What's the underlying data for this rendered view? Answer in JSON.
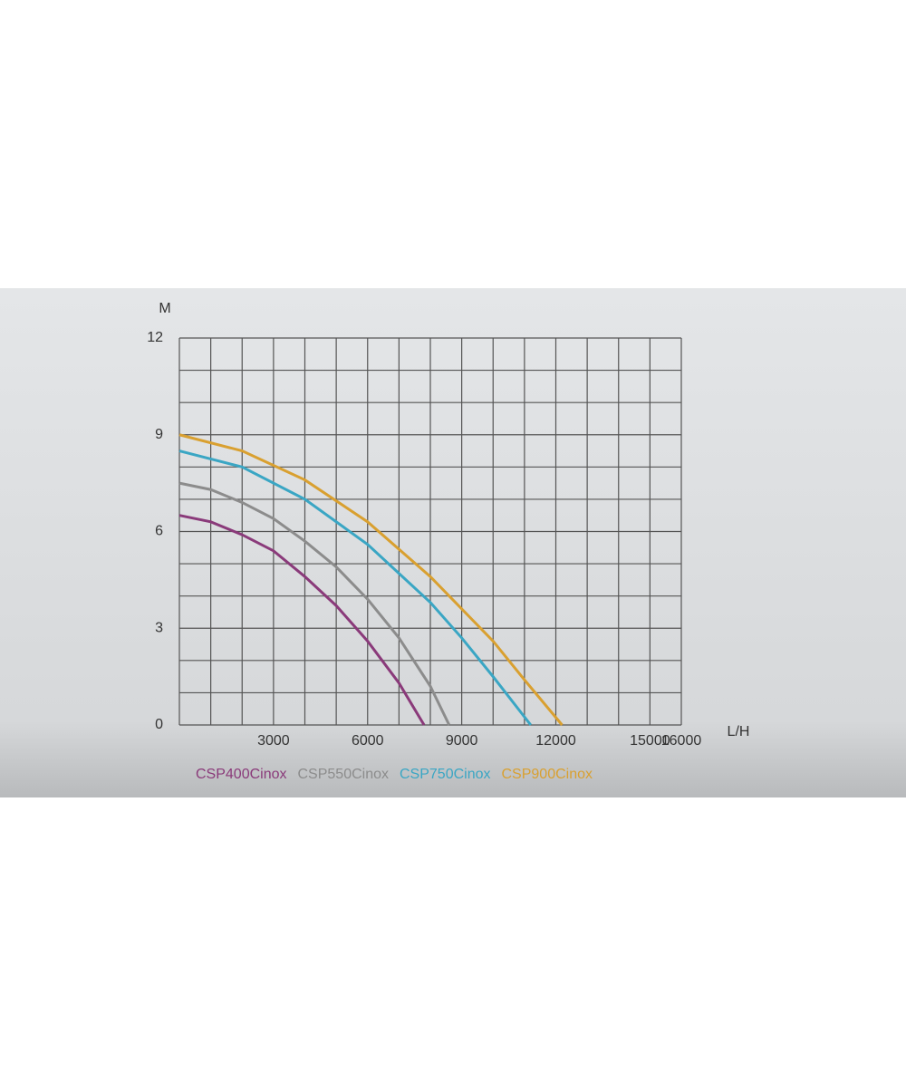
{
  "chart_data": {
    "type": "line",
    "y_label": "M",
    "x_label": "L/H",
    "xlim": [
      0,
      16000
    ],
    "ylim": [
      0,
      12
    ],
    "xticks": [
      3000,
      6000,
      9000,
      12000,
      15000,
      16000
    ],
    "yticks": [
      0,
      3,
      6,
      9,
      12
    ],
    "xgrid": [
      1000,
      2000,
      3000,
      4000,
      5000,
      6000,
      7000,
      8000,
      9000,
      10000,
      11000,
      12000,
      13000,
      14000,
      15000,
      16000
    ],
    "ygrid": [
      1,
      2,
      3,
      4,
      5,
      6,
      7,
      8,
      9,
      10,
      11,
      12
    ],
    "grid": true,
    "series": [
      {
        "name": "CSP400Cinox",
        "color": "#8a3a7a",
        "x": [
          0,
          1000,
          2000,
          3000,
          4000,
          5000,
          6000,
          7000,
          7800
        ],
        "values": [
          6.5,
          6.3,
          5.9,
          5.4,
          4.6,
          3.7,
          2.6,
          1.3,
          0
        ]
      },
      {
        "name": "CSP550Cinox",
        "color": "#8c8c8c",
        "x": [
          0,
          1000,
          2000,
          3000,
          4000,
          5000,
          6000,
          7000,
          8000,
          8600
        ],
        "values": [
          7.5,
          7.3,
          6.9,
          6.4,
          5.7,
          4.9,
          3.9,
          2.7,
          1.2,
          0
        ]
      },
      {
        "name": "CSP750Cinox",
        "color": "#3aa6c4",
        "x": [
          0,
          2000,
          4000,
          6000,
          8000,
          9000,
          10000,
          11200
        ],
        "values": [
          8.5,
          8.0,
          7.0,
          5.6,
          3.8,
          2.7,
          1.5,
          0
        ]
      },
      {
        "name": "CSP900Cinox",
        "color": "#d9a030",
        "x": [
          0,
          2000,
          4000,
          6000,
          8000,
          10000,
          11000,
          12200
        ],
        "values": [
          9.0,
          8.5,
          7.6,
          6.3,
          4.6,
          2.6,
          1.4,
          0
        ]
      }
    ]
  }
}
